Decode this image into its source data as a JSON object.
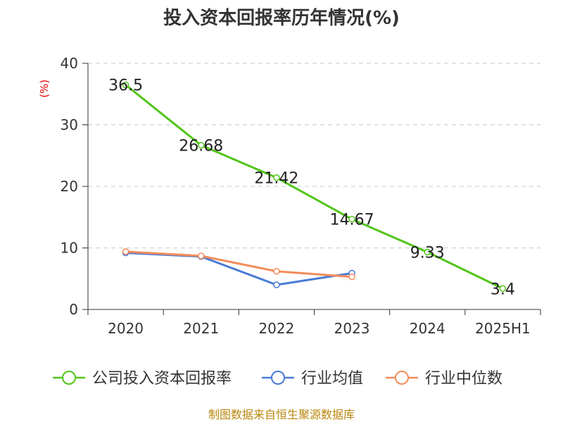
{
  "chart_data": {
    "type": "line",
    "title": "投入资本回报率历年情况(%)",
    "ylabel": "(%)",
    "categories": [
      "2020",
      "2021",
      "2022",
      "2023",
      "2024",
      "2025H1"
    ],
    "ylim": [
      0,
      40
    ],
    "yticks": [
      0,
      10,
      20,
      30,
      40
    ],
    "grid": true,
    "legend_position": "bottom",
    "series": [
      {
        "name": "公司投入资本回报率",
        "color": "#52c41a",
        "values": [
          36.5,
          26.68,
          21.42,
          14.67,
          9.33,
          3.4
        ],
        "labels": [
          "36.5",
          "26.68",
          "21.42",
          "14.67",
          "9.33",
          "3.4"
        ]
      },
      {
        "name": "行业均值",
        "color": "#4a7bd6",
        "values": [
          9.2,
          8.6,
          4.0,
          5.9,
          null,
          null
        ]
      },
      {
        "name": "行业中位数",
        "color": "#f28c5a",
        "values": [
          9.4,
          8.7,
          6.2,
          5.3,
          null,
          null
        ]
      }
    ]
  },
  "source": "制图数据来自恒生聚源数据库"
}
